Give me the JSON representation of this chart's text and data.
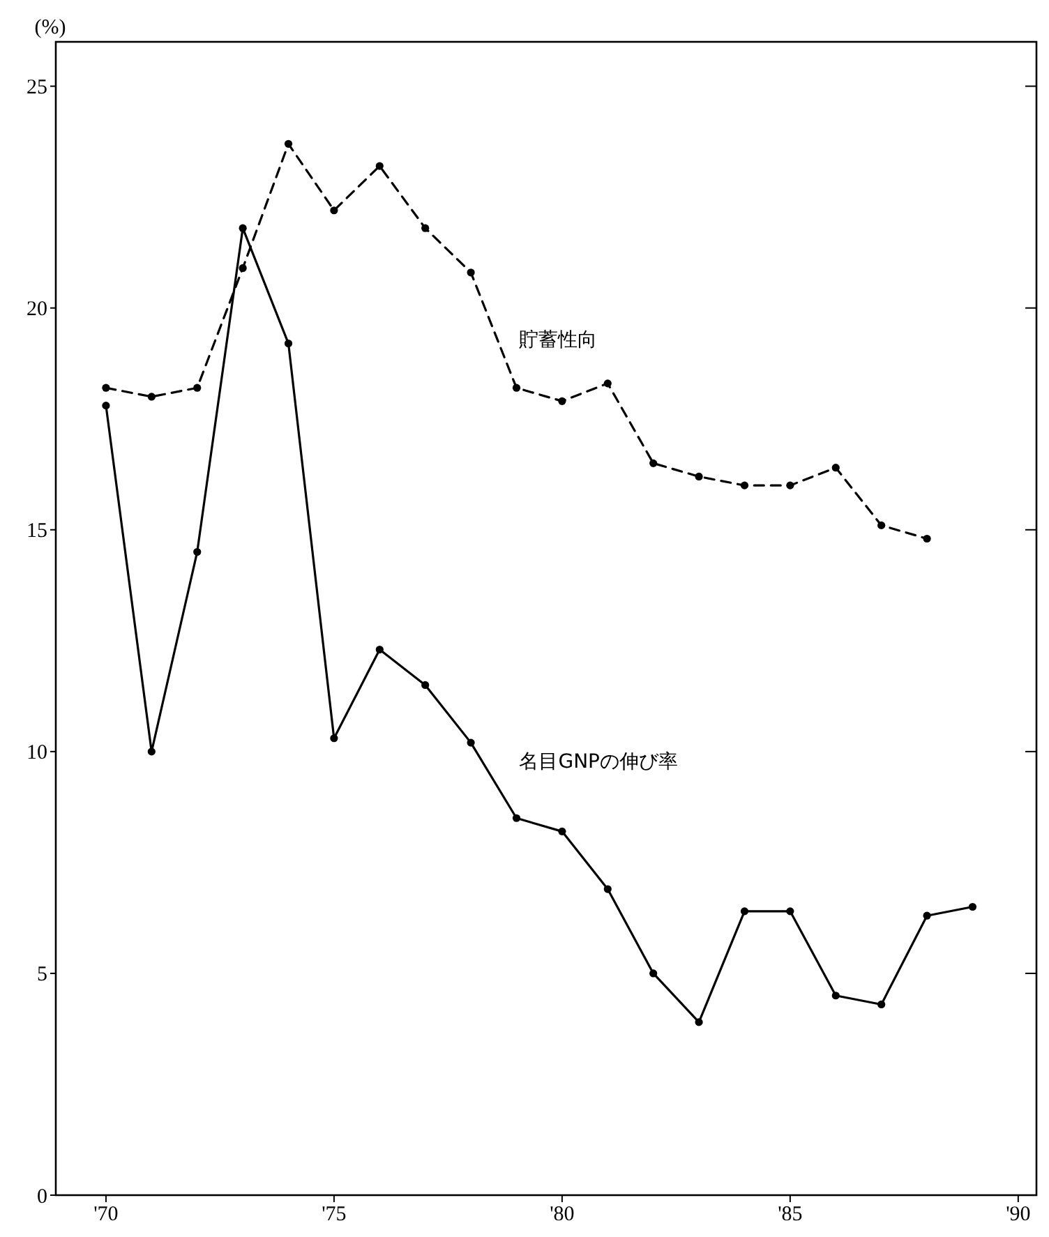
{
  "chart_data": {
    "type": "line",
    "ylabel": "(%)",
    "x": [
      1970,
      1971,
      1972,
      1973,
      1974,
      1975,
      1976,
      1977,
      1978,
      1979,
      1980,
      1981,
      1982,
      1983,
      1984,
      1985,
      1986,
      1987,
      1988,
      1989
    ],
    "series": [
      {
        "name": "貯蓄性向",
        "color": "#000000",
        "line_style": "dashed",
        "x": [
          1970,
          1971,
          1972,
          1973,
          1974,
          1975,
          1976,
          1977,
          1978,
          1979,
          1980,
          1981,
          1982,
          1983,
          1984,
          1985,
          1986,
          1987,
          1988
        ],
        "values": [
          18.2,
          18.0,
          18.2,
          20.9,
          23.7,
          22.2,
          23.2,
          21.8,
          20.8,
          18.2,
          17.9,
          18.3,
          16.5,
          16.2,
          16.0,
          16.0,
          16.4,
          15.1,
          14.8
        ]
      },
      {
        "name": "名目GNPの伸び率",
        "color": "#000000",
        "line_style": "solid",
        "values": [
          17.8,
          10.0,
          14.5,
          21.8,
          19.2,
          10.3,
          12.3,
          11.5,
          10.2,
          8.5,
          8.2,
          6.9,
          5.0,
          3.9,
          6.4,
          6.4,
          4.5,
          4.3,
          6.3,
          6.5
        ]
      }
    ],
    "xlim": [
      1968.9,
      1990.4
    ],
    "xticks": [
      {
        "value": 1970,
        "label": "'70"
      },
      {
        "value": 1975,
        "label": "'75"
      },
      {
        "value": 1980,
        "label": "'80"
      },
      {
        "value": 1985,
        "label": "'85"
      },
      {
        "value": 1990,
        "label": "'90"
      }
    ],
    "ylim": [
      0,
      26
    ],
    "yticks": [
      0,
      5,
      10,
      15,
      20,
      25
    ],
    "grid": false,
    "legend": false,
    "marker": "circle"
  }
}
